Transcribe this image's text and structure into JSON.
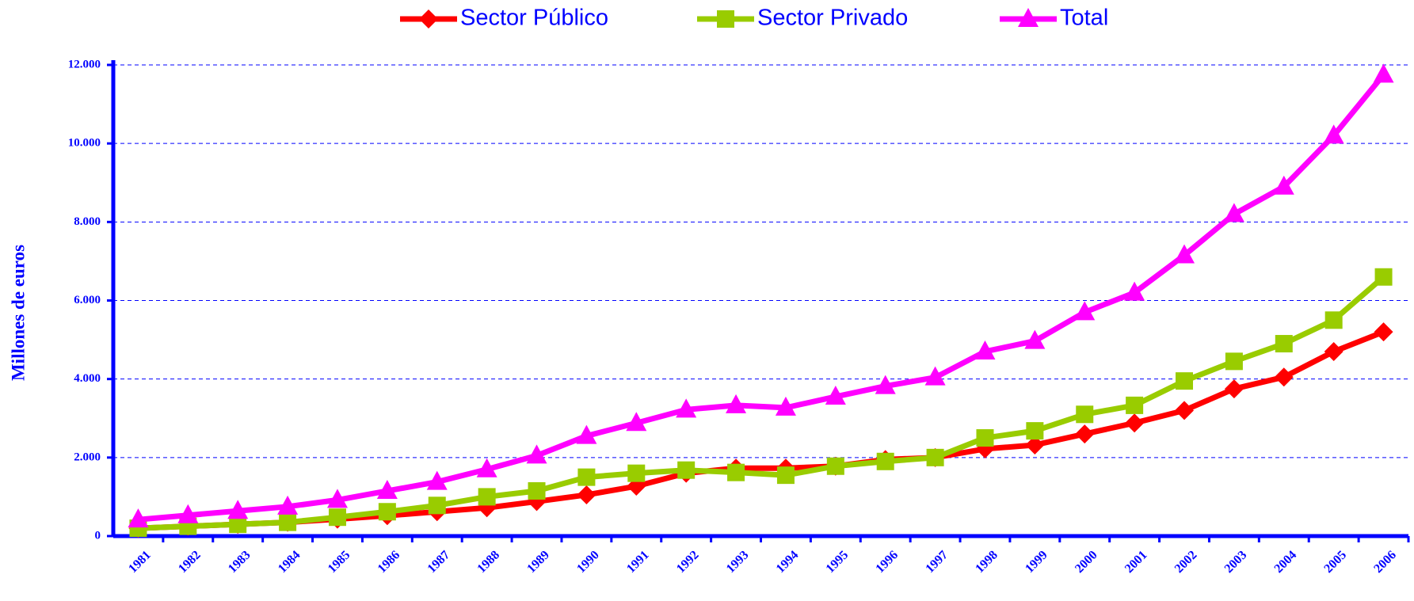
{
  "chart_data": {
    "type": "line",
    "y_label": "Millones de euros",
    "categories": [
      "1981",
      "1982",
      "1983",
      "1984",
      "1985",
      "1986",
      "1987",
      "1988",
      "1989",
      "1990",
      "1991",
      "1992",
      "1993",
      "1994",
      "1995",
      "1996",
      "1997",
      "1998",
      "1999",
      "2000",
      "2001",
      "2002",
      "2003",
      "2004",
      "2005",
      "2006"
    ],
    "series": [
      {
        "name": "Sector Público",
        "color": "#ff0000",
        "marker": "diamond",
        "values": [
          200,
          250,
          300,
          350,
          430,
          520,
          620,
          720,
          880,
          1050,
          1270,
          1600,
          1730,
          1730,
          1780,
          1950,
          2000,
          2220,
          2320,
          2600,
          2880,
          3200,
          3750,
          4050,
          4700,
          5200
        ]
      },
      {
        "name": "Sector Privado",
        "color": "#99cc00",
        "marker": "square",
        "values": [
          200,
          250,
          300,
          350,
          480,
          620,
          780,
          1000,
          1150,
          1500,
          1600,
          1680,
          1620,
          1550,
          1780,
          1900,
          2000,
          2500,
          2680,
          3100,
          3330,
          3950,
          4450,
          4900,
          5500,
          6600
        ]
      },
      {
        "name": "Total",
        "color": "#ff00ff",
        "marker": "triangle",
        "values": [
          420,
          530,
          640,
          750,
          920,
          1150,
          1380,
          1700,
          2050,
          2550,
          2880,
          3220,
          3330,
          3270,
          3550,
          3820,
          4040,
          4700,
          4970,
          5700,
          6200,
          7150,
          8200,
          8900,
          10200,
          11750
        ]
      }
    ],
    "ylim": [
      0,
      12000
    ],
    "yticks": [
      0,
      {
        "value": 2000,
        "label": "2.000"
      },
      {
        "value": 4000,
        "label": "4.000"
      },
      {
        "value": 6000,
        "label": "6.000"
      },
      {
        "value": 8000,
        "label": "8.000"
      },
      {
        "value": 10000,
        "label": "10.000"
      },
      {
        "value": 12000,
        "label": "12.000"
      }
    ],
    "grid": true,
    "axis_color": "#0000ff",
    "legend": "top"
  }
}
